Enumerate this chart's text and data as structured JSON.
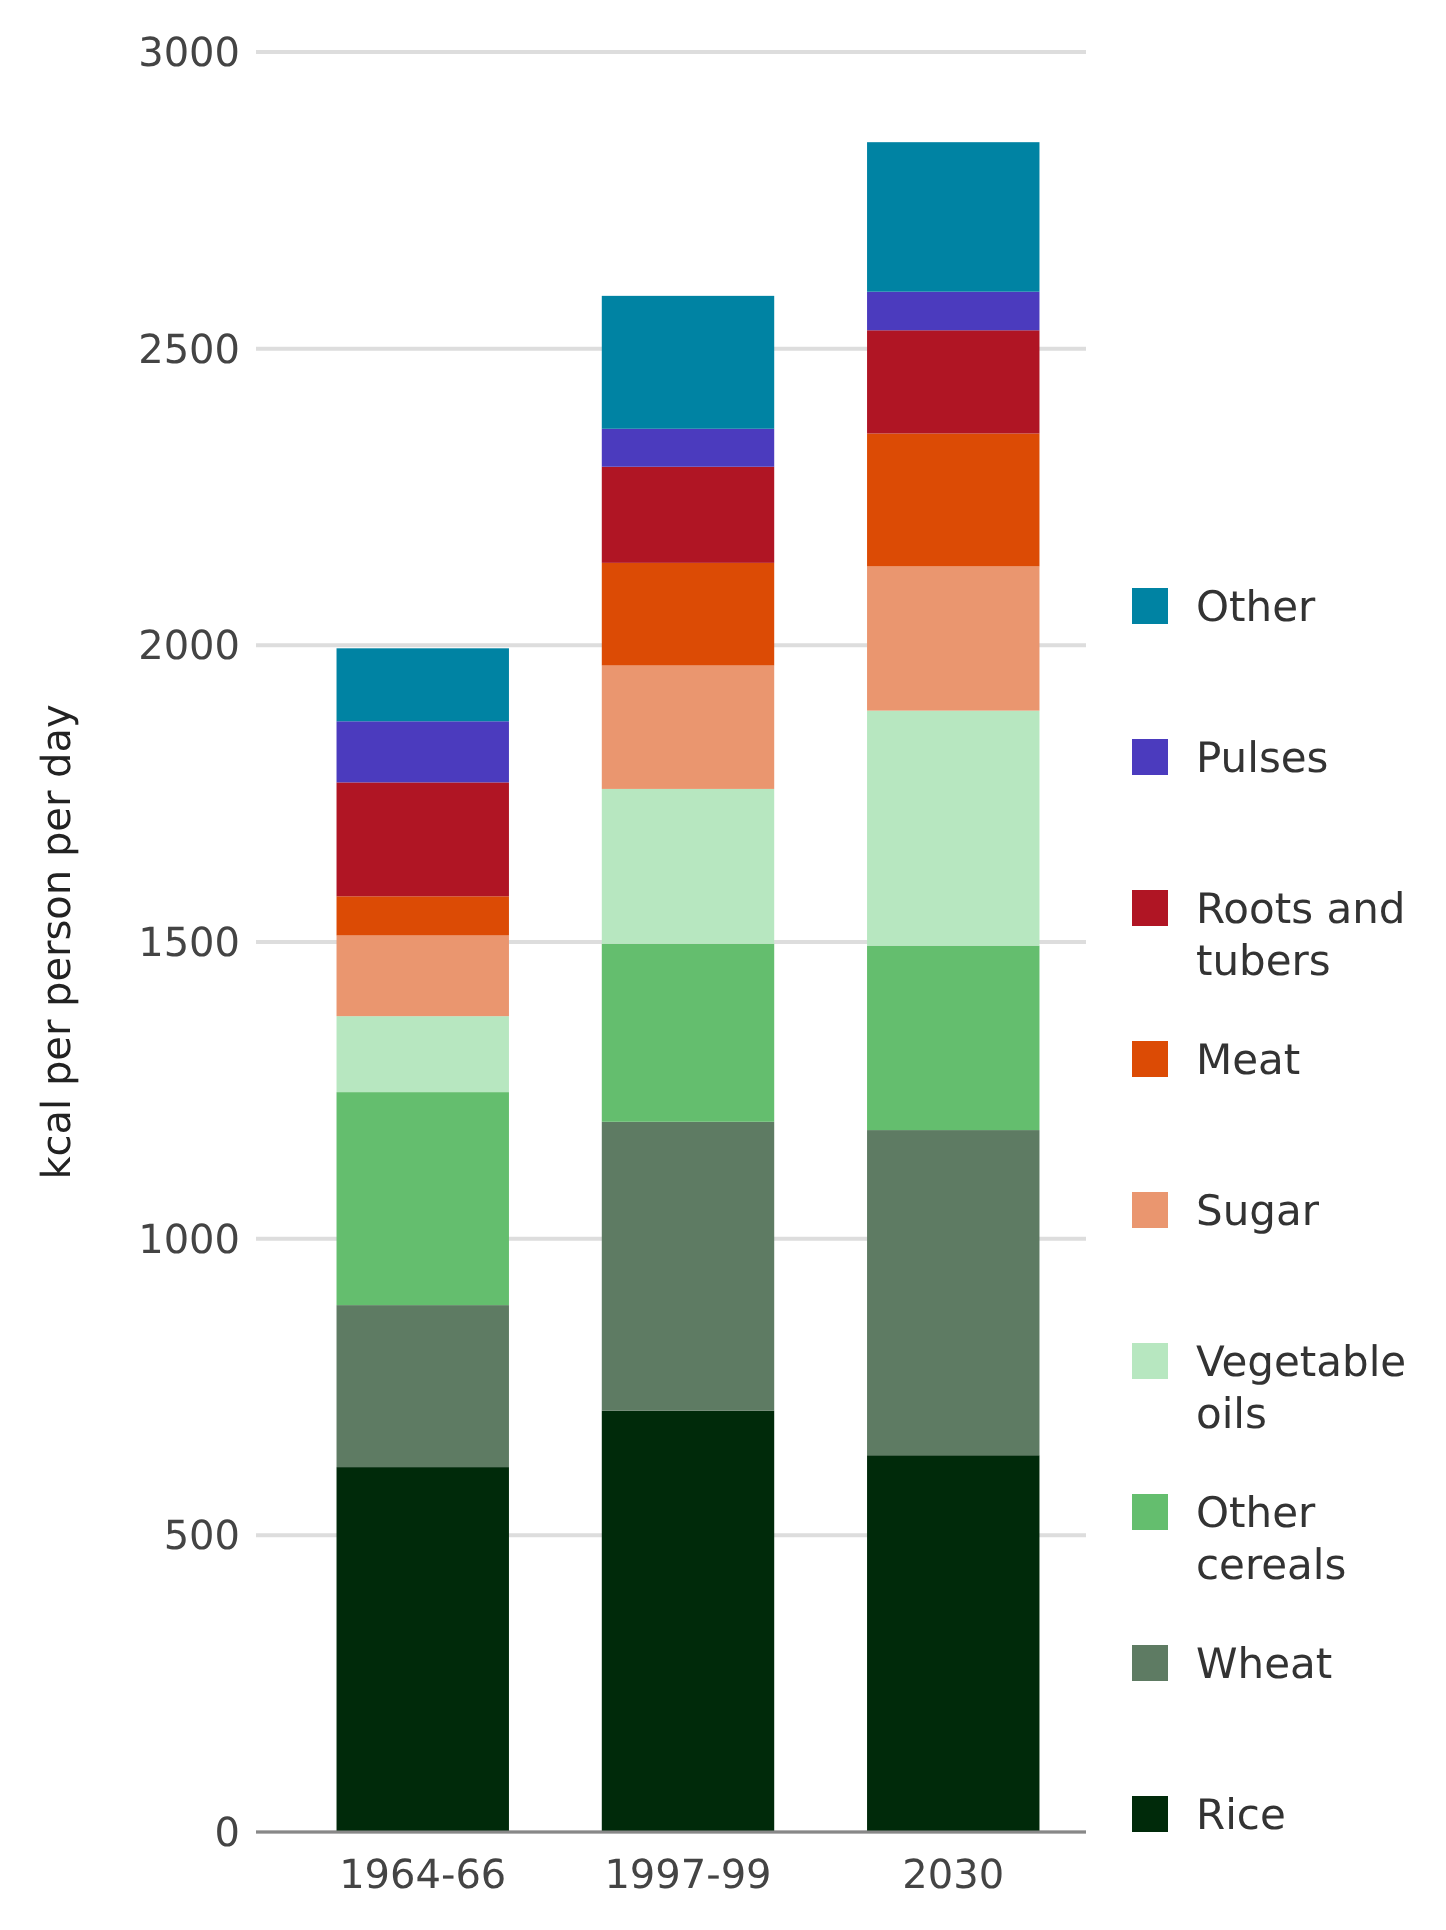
{
  "chart_data": {
    "type": "bar",
    "ylabel": "kcal per person per day",
    "categories": [
      "1964-66",
      "1997-99",
      "2030"
    ],
    "stacked": true,
    "ylim": [
      0,
      3000
    ],
    "yticks": [
      0,
      500,
      1000,
      1500,
      2000,
      2500,
      3000
    ],
    "grid": "y",
    "legend": "right",
    "series": [
      {
        "name": "Rice",
        "color": "#002a0a",
        "values": [
          615,
          710,
          635
        ]
      },
      {
        "name": "Wheat",
        "color": "#5e7b63",
        "values": [
          273,
          487,
          548
        ]
      },
      {
        "name": "Other cereals",
        "color": "#64be6e",
        "values": [
          359,
          300,
          311
        ]
      },
      {
        "name": "Vegetable oils",
        "color": "#b7e7c0",
        "values": [
          128,
          261,
          396
        ]
      },
      {
        "name": "Sugar",
        "color": "#ea966f",
        "values": [
          136,
          208,
          243
        ]
      },
      {
        "name": "Meat",
        "color": "#dc4b05",
        "values": [
          66,
          173,
          224
        ]
      },
      {
        "name": "Roots and tubers",
        "color": "#b01524",
        "values": [
          192,
          162,
          174
        ]
      },
      {
        "name": "Pulses",
        "color": "#4b3bbe",
        "values": [
          103,
          64,
          65
        ]
      },
      {
        "name": "Other",
        "color": "#0083a3",
        "values": [
          123,
          224,
          252
        ]
      }
    ]
  }
}
